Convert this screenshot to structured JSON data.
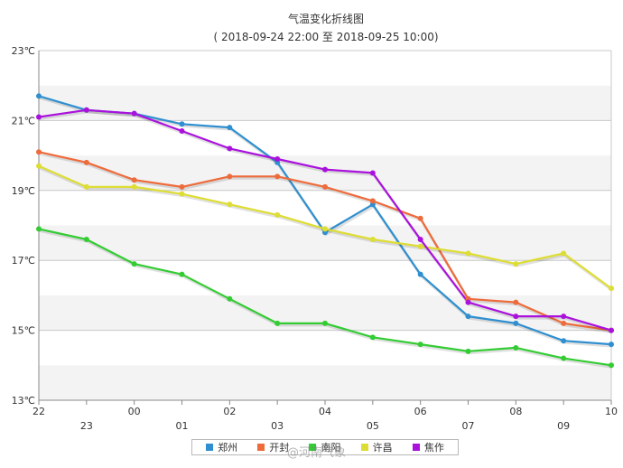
{
  "chart_data": {
    "type": "line",
    "title": "气温变化折线图",
    "subtitle": "( 2018-09-24 22:00 至 2018-09-25 10:00)",
    "x": [
      "22",
      "23",
      "00",
      "01",
      "02",
      "03",
      "04",
      "05",
      "06",
      "07",
      "08",
      "09",
      "10"
    ],
    "y_ticks": [
      "23℃",
      "21℃",
      "19℃",
      "17℃",
      "15℃",
      "13℃"
    ],
    "ylim": [
      13,
      23
    ],
    "grid": true,
    "legend_position": "bottom",
    "series": [
      {
        "name": "郑州",
        "color": "#2f8fd0",
        "values": [
          21.7,
          21.3,
          21.2,
          20.9,
          20.8,
          19.8,
          17.8,
          18.6,
          16.6,
          15.4,
          15.2,
          14.7,
          14.6
        ]
      },
      {
        "name": "开封",
        "color": "#ee6b3b",
        "values": [
          20.1,
          19.8,
          19.3,
          19.1,
          19.4,
          19.4,
          19.1,
          18.7,
          18.2,
          15.9,
          15.8,
          15.2,
          15.0
        ]
      },
      {
        "name": "南阳",
        "color": "#33cc33",
        "values": [
          17.9,
          17.6,
          16.9,
          16.6,
          15.9,
          15.2,
          15.2,
          14.8,
          14.6,
          14.4,
          14.5,
          14.2,
          14.0
        ]
      },
      {
        "name": "许昌",
        "color": "#dddd33",
        "values": [
          19.7,
          19.1,
          19.1,
          18.9,
          18.6,
          18.3,
          17.9,
          17.6,
          17.4,
          17.2,
          16.9,
          17.2,
          16.2
        ]
      },
      {
        "name": "焦作",
        "color": "#aa11dd",
        "values": [
          21.1,
          21.3,
          21.2,
          20.7,
          20.2,
          19.9,
          19.6,
          19.5,
          17.6,
          15.8,
          15.4,
          15.4,
          15.0
        ]
      }
    ]
  },
  "watermark": "@河南气象"
}
